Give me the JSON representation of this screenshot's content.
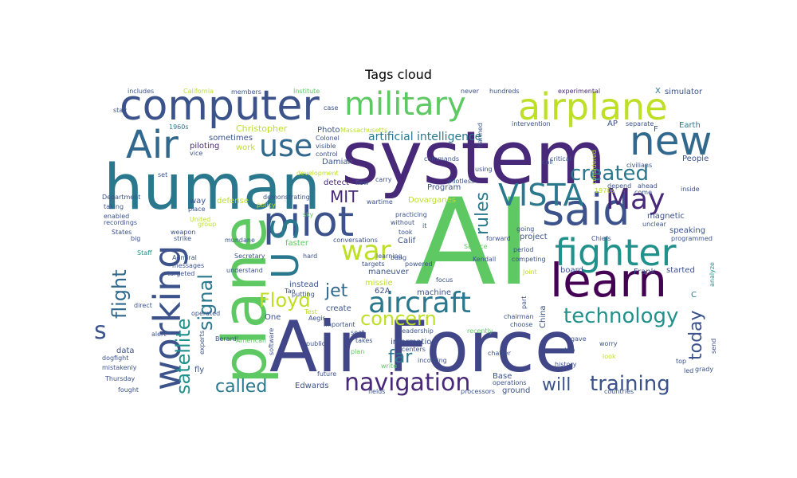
{
  "chart_data": {
    "type": "wordcloud",
    "title": "Tags cloud",
    "words": [
      {
        "text": "AI",
        "weight": 100,
        "color": "#5ec962"
      },
      {
        "text": "system",
        "weight": 100,
        "color": "#482878"
      },
      {
        "text": "Air Force",
        "weight": 90,
        "color": "#404688"
      },
      {
        "text": "human",
        "weight": 80,
        "color": "#2a788e"
      },
      {
        "text": "plane",
        "weight": 75,
        "color": "#5ec962"
      },
      {
        "text": "computer",
        "weight": 55,
        "color": "#3b528b"
      },
      {
        "text": "learn",
        "weight": 60,
        "color": "#440154"
      },
      {
        "text": "airplane",
        "weight": 48,
        "color": "#bddf26"
      },
      {
        "text": "said",
        "weight": 55,
        "color": "#3b528b"
      },
      {
        "text": "pilot",
        "weight": 55,
        "color": "#3b528b"
      },
      {
        "text": "military",
        "weight": 42,
        "color": "#5ec962"
      },
      {
        "text": "working",
        "weight": 45,
        "color": "#3b528b"
      },
      {
        "text": "new",
        "weight": 50,
        "color": "#31688e"
      },
      {
        "text": "Air",
        "weight": 48,
        "color": "#31688e"
      },
      {
        "text": "U S",
        "weight": 45,
        "color": "#2a788e"
      },
      {
        "text": "fighter",
        "weight": 42,
        "color": "#21918c"
      },
      {
        "text": "VISTA",
        "weight": 38,
        "color": "#2a788e"
      },
      {
        "text": "May",
        "weight": 36,
        "color": "#482878"
      },
      {
        "text": "use",
        "weight": 36,
        "color": "#31688e"
      },
      {
        "text": "aircraft",
        "weight": 34,
        "color": "#2a788e"
      },
      {
        "text": "war",
        "weight": 34,
        "color": "#bddf26"
      },
      {
        "text": "navigation",
        "weight": 30,
        "color": "#482878"
      },
      {
        "text": "created",
        "weight": 26,
        "color": "#2a788e"
      },
      {
        "text": "technology",
        "weight": 26,
        "color": "#21918c"
      },
      {
        "text": "training",
        "weight": 26,
        "color": "#3b528b"
      },
      {
        "text": "satellite",
        "weight": 24,
        "color": "#21918c"
      },
      {
        "text": "signal",
        "weight": 24,
        "color": "#2a788e"
      },
      {
        "text": "flight",
        "weight": 24,
        "color": "#31688e"
      },
      {
        "text": "Floyd",
        "weight": 24,
        "color": "#bddf26"
      },
      {
        "text": "concern",
        "weight": 24,
        "color": "#bddf26"
      },
      {
        "text": "rules",
        "weight": 22,
        "color": "#2a788e"
      },
      {
        "text": "called",
        "weight": 22,
        "color": "#2a788e"
      },
      {
        "text": "today",
        "weight": 22,
        "color": "#3b528b"
      },
      {
        "text": "jet",
        "weight": 22,
        "color": "#31688e"
      },
      {
        "text": "far",
        "weight": 22,
        "color": "#2a788e"
      },
      {
        "text": "will",
        "weight": 22,
        "color": "#3b528b"
      },
      {
        "text": "MIT",
        "weight": 20,
        "color": "#482878"
      },
      {
        "text": "artificial intelligence",
        "weight": 16,
        "color": "#2a788e"
      },
      {
        "text": "s",
        "weight": 30,
        "color": "#3b528b"
      },
      {
        "text": "Christopher",
        "weight": 10,
        "color": "#bddf26"
      },
      {
        "text": "Photo",
        "weight": 10,
        "color": "#3b528b"
      },
      {
        "text": "Massachusetts",
        "weight": 8,
        "color": "#bddf26"
      },
      {
        "text": "Colonel",
        "weight": 8,
        "color": "#3b528b"
      },
      {
        "text": "case",
        "weight": 8,
        "color": "#3b528b"
      },
      {
        "text": "Institute",
        "weight": 8,
        "color": "#5ec962"
      },
      {
        "text": "members",
        "weight": 8,
        "color": "#3b528b"
      },
      {
        "text": "California",
        "weight": 8,
        "color": "#bddf26"
      },
      {
        "text": "includes",
        "weight": 8,
        "color": "#3b528b"
      },
      {
        "text": "never",
        "weight": 8,
        "color": "#3b528b"
      },
      {
        "text": "hundreds",
        "weight": 8,
        "color": "#3b528b"
      },
      {
        "text": "experimental",
        "weight": 8,
        "color": "#482878"
      },
      {
        "text": "X",
        "weight": 10,
        "color": "#2a788e"
      },
      {
        "text": "simulator",
        "weight": 10,
        "color": "#3b528b"
      },
      {
        "text": "stay",
        "weight": 8,
        "color": "#3b528b"
      },
      {
        "text": "1960s",
        "weight": 8,
        "color": "#2a788e"
      },
      {
        "text": "sometimes",
        "weight": 10,
        "color": "#3b528b"
      },
      {
        "text": "piloting",
        "weight": 10,
        "color": "#482878"
      },
      {
        "text": "work",
        "weight": 10,
        "color": "#bddf26"
      },
      {
        "text": "visible",
        "weight": 8,
        "color": "#3b528b"
      },
      {
        "text": "vice",
        "weight": 8,
        "color": "#3b528b"
      },
      {
        "text": "development",
        "weight": 8,
        "color": "#bddf26"
      },
      {
        "text": "Damian",
        "weight": 10,
        "color": "#3b528b"
      },
      {
        "text": "detect",
        "weight": 10,
        "color": "#482878"
      },
      {
        "text": "Program",
        "weight": 10,
        "color": "#3b528b"
      },
      {
        "text": "Dovarganes",
        "weight": 10,
        "color": "#bddf26"
      },
      {
        "text": "AP",
        "weight": 10,
        "color": "#3b528b"
      },
      {
        "text": "separate",
        "weight": 8,
        "color": "#3b528b"
      },
      {
        "text": "Earth",
        "weight": 10,
        "color": "#2a788e"
      },
      {
        "text": "People",
        "weight": 10,
        "color": "#3b528b"
      },
      {
        "text": "inside",
        "weight": 8,
        "color": "#3b528b"
      },
      {
        "text": "Department",
        "weight": 8,
        "color": "#3b528b"
      },
      {
        "text": "taking",
        "weight": 8,
        "color": "#3b528b"
      },
      {
        "text": "enabled",
        "weight": 8,
        "color": "#3b528b"
      },
      {
        "text": "recordings",
        "weight": 8,
        "color": "#3b528b"
      },
      {
        "text": "States",
        "weight": 8,
        "color": "#3b528b"
      },
      {
        "text": "big",
        "weight": 8,
        "color": "#3b528b"
      },
      {
        "text": "Staff",
        "weight": 8,
        "color": "#21918c"
      },
      {
        "text": "Admiral",
        "weight": 8,
        "color": "#3b528b"
      },
      {
        "text": "messages",
        "weight": 8,
        "color": "#3b528b"
      },
      {
        "text": "targeted",
        "weight": 8,
        "color": "#3b528b"
      },
      {
        "text": "direct",
        "weight": 8,
        "color": "#3b528b"
      },
      {
        "text": "operated",
        "weight": 8,
        "color": "#3b528b"
      },
      {
        "text": "experts",
        "weight": 8,
        "color": "#3b528b"
      },
      {
        "text": "Berardi",
        "weight": 8,
        "color": "#3b528b"
      },
      {
        "text": "American",
        "weight": 8,
        "color": "#5ec962"
      },
      {
        "text": "dogfight",
        "weight": 8,
        "color": "#3b528b"
      },
      {
        "text": "mistakenly",
        "weight": 8,
        "color": "#3b528b"
      },
      {
        "text": "Thursday",
        "weight": 8,
        "color": "#3b528b"
      },
      {
        "text": "fought",
        "weight": 8,
        "color": "#3b528b"
      },
      {
        "text": "way",
        "weight": 10,
        "color": "#3b528b"
      },
      {
        "text": "place",
        "weight": 8,
        "color": "#3b528b"
      },
      {
        "text": "defense",
        "weight": 10,
        "color": "#bddf26"
      },
      {
        "text": "strike",
        "weight": 8,
        "color": "#3b528b"
      },
      {
        "text": "weapon",
        "weight": 8,
        "color": "#3b528b"
      },
      {
        "text": "United",
        "weight": 8,
        "color": "#bddf26"
      },
      {
        "text": "mundane",
        "weight": 8,
        "color": "#3b528b"
      },
      {
        "text": "Secretary",
        "weight": 8,
        "color": "#3b528b"
      },
      {
        "text": "understand",
        "weight": 8,
        "color": "#3b528b"
      },
      {
        "text": "hard",
        "weight": 8,
        "color": "#3b528b"
      },
      {
        "text": "putting",
        "weight": 8,
        "color": "#3b528b"
      },
      {
        "text": "instead",
        "weight": 10,
        "color": "#3b528b"
      },
      {
        "text": "create",
        "weight": 10,
        "color": "#3b528b"
      },
      {
        "text": "important",
        "weight": 8,
        "color": "#3b528b"
      },
      {
        "text": "public",
        "weight": 8,
        "color": "#3b528b"
      },
      {
        "text": "future",
        "weight": 8,
        "color": "#3b528b"
      },
      {
        "text": "fly",
        "weight": 10,
        "color": "#3b528b"
      },
      {
        "text": "data",
        "weight": 10,
        "color": "#3b528b"
      },
      {
        "text": "Edwards",
        "weight": 10,
        "color": "#3b528b"
      },
      {
        "text": "policy",
        "weight": 8,
        "color": "#bddf26"
      },
      {
        "text": "demonstrating",
        "weight": 8,
        "color": "#3b528b"
      },
      {
        "text": "sky",
        "weight": 8,
        "color": "#5ec962"
      },
      {
        "text": "wartime",
        "weight": 8,
        "color": "#3b528b"
      },
      {
        "text": "practicing",
        "weight": 8,
        "color": "#3b528b"
      },
      {
        "text": "without",
        "weight": 8,
        "color": "#3b528b"
      },
      {
        "text": "faster",
        "weight": 10,
        "color": "#5ec962"
      },
      {
        "text": "conversations",
        "weight": 8,
        "color": "#3b528b"
      },
      {
        "text": "bang",
        "weight": 8,
        "color": "#3b528b"
      },
      {
        "text": "powered",
        "weight": 8,
        "color": "#3b528b"
      },
      {
        "text": "targets",
        "weight": 8,
        "color": "#3b528b"
      },
      {
        "text": "Calif",
        "weight": 10,
        "color": "#3b528b"
      },
      {
        "text": "maneuver",
        "weight": 10,
        "color": "#3b528b"
      },
      {
        "text": "missile",
        "weight": 10,
        "color": "#bddf26"
      },
      {
        "text": "62A",
        "weight": 10,
        "color": "#3b528b"
      },
      {
        "text": "machine",
        "weight": 10,
        "color": "#3b528b"
      },
      {
        "text": "focus",
        "weight": 8,
        "color": "#3b528b"
      },
      {
        "text": "Test",
        "weight": 8,
        "color": "#bddf26"
      },
      {
        "text": "Aegis",
        "weight": 8,
        "color": "#3b528b"
      },
      {
        "text": "seat",
        "weight": 8,
        "color": "#3b528b"
      },
      {
        "text": "takes",
        "weight": 8,
        "color": "#3b528b"
      },
      {
        "text": "information",
        "weight": 10,
        "color": "#3b528b"
      },
      {
        "text": "leadership",
        "weight": 8,
        "color": "#3b528b"
      },
      {
        "text": "centers",
        "weight": 8,
        "color": "#3b528b"
      },
      {
        "text": "plan",
        "weight": 8,
        "color": "#5ec962"
      },
      {
        "text": "incoming",
        "weight": 8,
        "color": "#3b528b"
      },
      {
        "text": "write",
        "weight": 8,
        "color": "#5ec962"
      },
      {
        "text": "fields",
        "weight": 8,
        "color": "#3b528b"
      },
      {
        "text": "processors",
        "weight": 8,
        "color": "#3b528b"
      },
      {
        "text": "operations",
        "weight": 8,
        "color": "#3b528b"
      },
      {
        "text": "ground",
        "weight": 10,
        "color": "#3b528b"
      },
      {
        "text": "Base",
        "weight": 10,
        "color": "#3b528b"
      },
      {
        "text": "China",
        "weight": 10,
        "color": "#3b528b"
      },
      {
        "text": "part",
        "weight": 8,
        "color": "#3b528b"
      },
      {
        "text": "chairman",
        "weight": 8,
        "color": "#3b528b"
      },
      {
        "text": "choose",
        "weight": 8,
        "color": "#3b528b"
      },
      {
        "text": "recently",
        "weight": 8,
        "color": "#5ec962"
      },
      {
        "text": "chatter",
        "weight": 8,
        "color": "#3b528b"
      },
      {
        "text": "step",
        "weight": 8,
        "color": "#3b528b"
      },
      {
        "text": "gave",
        "weight": 8,
        "color": "#3b528b"
      },
      {
        "text": "worry",
        "weight": 8,
        "color": "#3b528b"
      },
      {
        "text": "look",
        "weight": 8,
        "color": "#bddf26"
      },
      {
        "text": "history",
        "weight": 8,
        "color": "#3b528b"
      },
      {
        "text": "countries",
        "weight": 8,
        "color": "#3b528b"
      },
      {
        "text": "top",
        "weight": 8,
        "color": "#3b528b"
      },
      {
        "text": "led",
        "weight": 8,
        "color": "#3b528b"
      },
      {
        "text": "grady",
        "weight": 8,
        "color": "#3b528b"
      },
      {
        "text": "send",
        "weight": 8,
        "color": "#3b528b"
      },
      {
        "text": "C",
        "weight": 10,
        "color": "#2a788e"
      },
      {
        "text": "analyze",
        "weight": 8,
        "color": "#21918c"
      },
      {
        "text": "started",
        "weight": 10,
        "color": "#3b528b"
      },
      {
        "text": "Frank",
        "weight": 10,
        "color": "#3b528b"
      },
      {
        "text": "board",
        "weight": 10,
        "color": "#3b528b"
      },
      {
        "text": "Joint",
        "weight": 8,
        "color": "#bddf26"
      },
      {
        "text": "Kendall",
        "weight": 8,
        "color": "#3b528b"
      },
      {
        "text": "competing",
        "weight": 8,
        "color": "#3b528b"
      },
      {
        "text": "period",
        "weight": 8,
        "color": "#3b528b"
      },
      {
        "text": "Service",
        "weight": 8,
        "color": "#5ec962"
      },
      {
        "text": "forward",
        "weight": 8,
        "color": "#3b528b"
      },
      {
        "text": "project",
        "weight": 10,
        "color": "#3b528b"
      },
      {
        "text": "going",
        "weight": 8,
        "color": "#3b528b"
      },
      {
        "text": "Chiefs",
        "weight": 8,
        "color": "#3b528b"
      },
      {
        "text": "programmed",
        "weight": 8,
        "color": "#3b528b"
      },
      {
        "text": "speaking",
        "weight": 10,
        "color": "#3b528b"
      },
      {
        "text": "unclear",
        "weight": 8,
        "color": "#3b528b"
      },
      {
        "text": "magnetic",
        "weight": 10,
        "color": "#3b528b"
      },
      {
        "text": "depend",
        "weight": 8,
        "color": "#3b528b"
      },
      {
        "text": "ahead",
        "weight": 8,
        "color": "#3b528b"
      },
      {
        "text": "come",
        "weight": 8,
        "color": "#3b528b"
      },
      {
        "text": "1970s",
        "weight": 8,
        "color": "#bddf26"
      },
      {
        "text": "civilians",
        "weight": 8,
        "color": "#3b528b"
      },
      {
        "text": "considered",
        "weight": 8,
        "color": "#bddf26"
      },
      {
        "text": "critical",
        "weight": 8,
        "color": "#3b528b"
      },
      {
        "text": "call",
        "weight": 8,
        "color": "#3b528b"
      },
      {
        "text": "using",
        "weight": 8,
        "color": "#3b528b"
      },
      {
        "text": "harmed",
        "weight": 8,
        "color": "#3b528b"
      },
      {
        "text": "pilotless",
        "weight": 8,
        "color": "#3b528b"
      },
      {
        "text": "commands",
        "weight": 8,
        "color": "#3b528b"
      },
      {
        "text": "intervention",
        "weight": 8,
        "color": "#3b528b"
      },
      {
        "text": "control",
        "weight": 8,
        "color": "#3b528b"
      },
      {
        "text": "flew",
        "weight": 8,
        "color": "#3b528b"
      },
      {
        "text": "carry",
        "weight": 8,
        "color": "#3b528b"
      },
      {
        "text": "learning",
        "weight": 8,
        "color": "#3b528b"
      },
      {
        "text": "took",
        "weight": 8,
        "color": "#3b528b"
      },
      {
        "text": "it",
        "weight": 8,
        "color": "#3b528b"
      },
      {
        "text": "F",
        "weight": 10,
        "color": "#3b528b"
      },
      {
        "text": "alert",
        "weight": 8,
        "color": "#3b528b"
      },
      {
        "text": "software",
        "weight": 8,
        "color": "#3b528b"
      },
      {
        "text": "Tao",
        "weight": 8,
        "color": "#3b528b"
      },
      {
        "text": "One",
        "weight": 10,
        "color": "#3b528b"
      },
      {
        "text": "set",
        "weight": 8,
        "color": "#3b528b"
      },
      {
        "text": "group",
        "weight": 8,
        "color": "#bddf26"
      }
    ]
  }
}
